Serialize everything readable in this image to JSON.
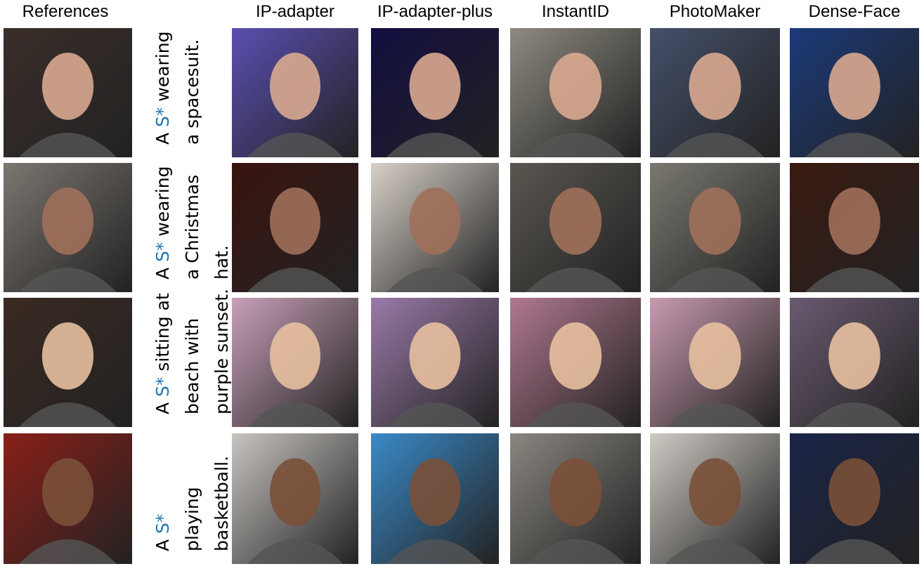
{
  "header": {
    "references": "References",
    "columns": [
      "IP-adapter",
      "IP-adapter-plus",
      "InstantID",
      "PhotoMaker",
      "Dense-Face"
    ]
  },
  "rows": [
    {
      "lines": [
        [
          "A",
          "S*",
          "wearing"
        ],
        [
          "a spacesuit."
        ]
      ]
    },
    {
      "lines": [
        [
          "A",
          "S*",
          "wearing"
        ],
        [
          "a Christmas"
        ],
        [
          "hat."
        ]
      ]
    },
    {
      "lines": [
        [
          "A",
          "S*",
          "sitting at"
        ],
        [
          "beach with"
        ],
        [
          "purple sunset."
        ]
      ]
    },
    {
      "lines": [
        [
          "A",
          "S*"
        ],
        [
          "playing"
        ],
        [
          "basketball."
        ]
      ]
    }
  ]
}
